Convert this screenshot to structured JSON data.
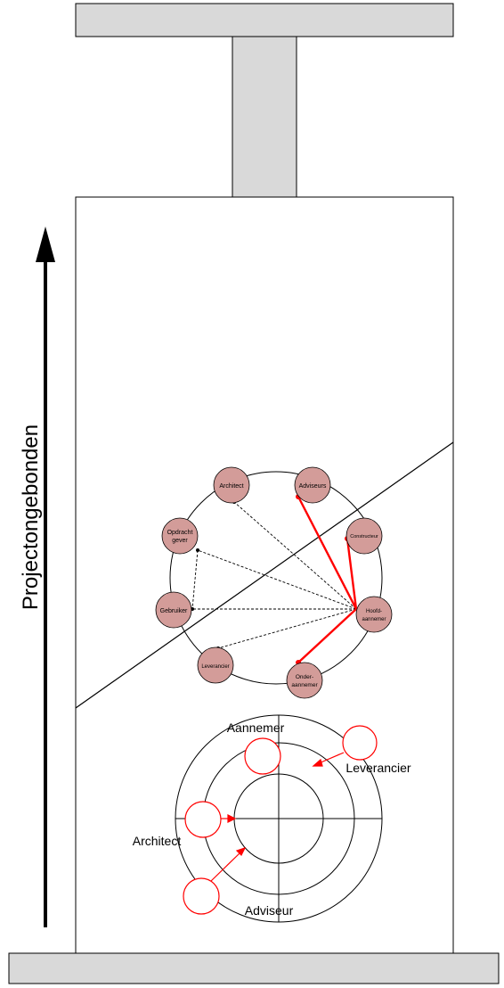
{
  "vertical_label": "Projectongebonden",
  "network": {
    "nodes": {
      "architect": "Architect",
      "adviseurs": "Adviseurs",
      "constructeur": "Constructeur",
      "opdrachtgever": [
        "Opdracht",
        "gever"
      ],
      "gebruiker": "Gebruiker",
      "hoofdaannemer": [
        "Hoofd-",
        "aannemer"
      ],
      "leverancier": "Leverancier",
      "onderaannemer": [
        "Onder-",
        "aannemer"
      ]
    }
  },
  "rings": {
    "aannemer": "Aannemer",
    "leverancier": "Leverancier",
    "architect": "Architect",
    "adviseur": "Adviseur"
  },
  "colors": {
    "node_fill": "#d39c99",
    "red": "#ff0000",
    "beam_fill": "#d9d9d9"
  }
}
